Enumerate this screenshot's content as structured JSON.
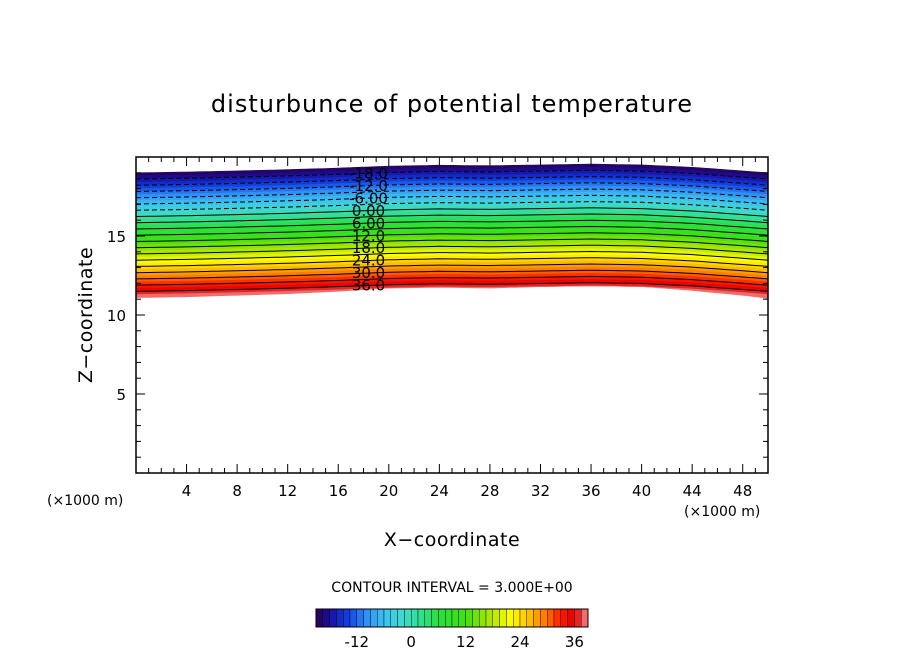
{
  "chart_data": {
    "type": "contour",
    "title": "disturbunce of potential temperature",
    "xlabel": "X−coordinate",
    "ylabel": "Z−coordinate",
    "x_unit": "(×1000 m)",
    "z_unit": "(×1000 m)",
    "xlim": [
      0,
      50
    ],
    "ylim": [
      0,
      20
    ],
    "x_ticks": [
      "4",
      "8",
      "12",
      "16",
      "20",
      "24",
      "28",
      "32",
      "36",
      "40",
      "44",
      "48"
    ],
    "x_tick_values": [
      4,
      8,
      12,
      16,
      20,
      24,
      28,
      32,
      36,
      40,
      44,
      48
    ],
    "y_ticks": [
      "5",
      "10",
      "15"
    ],
    "y_tick_values": [
      5,
      10,
      15
    ],
    "contour_interval_text": "CONTOUR INTERVAL = 3.000E+00",
    "contour_interval": 3,
    "level_min": -21,
    "level_max": 39,
    "contour_labels": [
      {
        "text": "-18.0",
        "level": -18
      },
      {
        "text": "-12.0",
        "level": -12
      },
      {
        "text": "-6.00",
        "level": -6
      },
      {
        "text": "0.00",
        "level": 0
      },
      {
        "text": "6.00",
        "level": 6
      },
      {
        "text": "12.0",
        "level": 12
      },
      {
        "text": "18.0",
        "level": 18
      },
      {
        "text": "24.0",
        "level": 24
      },
      {
        "text": "30.0",
        "level": 30
      },
      {
        "text": "36.0",
        "level": 36
      }
    ],
    "colorbar_ticks": [
      "-12",
      "0",
      "12",
      "24",
      "36"
    ],
    "colorbar_tick_values": [
      -12,
      0,
      12,
      24,
      36
    ],
    "field_top_z": 19.0,
    "field_bottom_profile": {
      "x": [
        0,
        4,
        8,
        12,
        16,
        20,
        24,
        28,
        32,
        36,
        40,
        44,
        48,
        50
      ],
      "z": [
        11.1,
        11.15,
        11.25,
        11.35,
        11.5,
        11.7,
        11.75,
        11.7,
        11.8,
        11.85,
        11.8,
        11.55,
        11.25,
        11.05
      ]
    },
    "contour_profile": {
      "x": [
        0,
        4,
        8,
        12,
        16,
        20,
        24,
        28,
        32,
        36,
        40,
        44,
        48,
        50
      ],
      "dz": [
        0,
        0.05,
        0.12,
        0.2,
        0.3,
        0.42,
        0.48,
        0.45,
        0.5,
        0.55,
        0.5,
        0.35,
        0.12,
        0
      ]
    }
  }
}
